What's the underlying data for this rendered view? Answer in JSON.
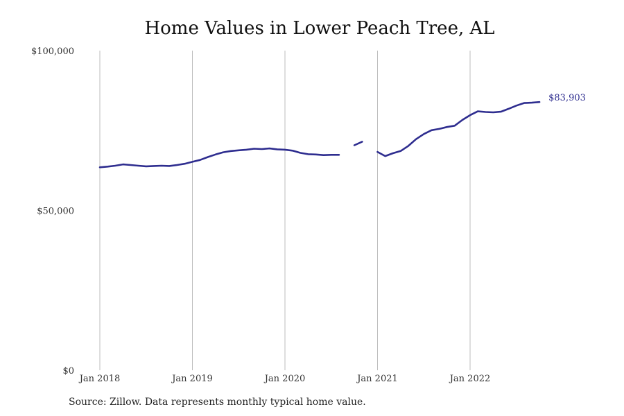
{
  "chart_data": {
    "type": "line",
    "title": "Home Values in Lower Peach Tree, AL",
    "xlabel": "",
    "ylabel": "",
    "ylim": [
      0,
      100000
    ],
    "y_ticks": [
      {
        "value": 0,
        "label": "$0"
      },
      {
        "value": 50000,
        "label": "$50,000"
      },
      {
        "value": 100000,
        "label": "$100,000"
      }
    ],
    "x_ticks": [
      {
        "value": "2018-01",
        "label": "Jan 2018"
      },
      {
        "value": "2019-01",
        "label": "Jan 2019"
      },
      {
        "value": "2020-01",
        "label": "Jan 2020"
      },
      {
        "value": "2021-01",
        "label": "Jan 2021"
      },
      {
        "value": "2022-01",
        "label": "Jan 2022"
      }
    ],
    "grid": "vertical",
    "color": "#2e2d8f",
    "end_label": "$83,903",
    "series": [
      {
        "points": [
          [
            "2018-01",
            63500
          ],
          [
            "2018-02",
            63700
          ],
          [
            "2018-03",
            64000
          ],
          [
            "2018-04",
            64400
          ],
          [
            "2018-05",
            64200
          ],
          [
            "2018-06",
            64000
          ],
          [
            "2018-07",
            63800
          ],
          [
            "2018-08",
            63900
          ],
          [
            "2018-09",
            64000
          ],
          [
            "2018-10",
            63900
          ],
          [
            "2018-11",
            64200
          ],
          [
            "2018-12",
            64600
          ],
          [
            "2019-01",
            65200
          ],
          [
            "2019-02",
            65800
          ],
          [
            "2019-03",
            66700
          ],
          [
            "2019-04",
            67500
          ],
          [
            "2019-05",
            68200
          ],
          [
            "2019-06",
            68600
          ],
          [
            "2019-07",
            68800
          ],
          [
            "2019-08",
            69000
          ],
          [
            "2019-09",
            69300
          ],
          [
            "2019-10",
            69200
          ],
          [
            "2019-11",
            69400
          ],
          [
            "2019-12",
            69100
          ],
          [
            "2020-01",
            69000
          ],
          [
            "2020-02",
            68700
          ],
          [
            "2020-03",
            68000
          ],
          [
            "2020-04",
            67600
          ],
          [
            "2020-05",
            67500
          ],
          [
            "2020-06",
            67300
          ],
          [
            "2020-07",
            67400
          ],
          [
            "2020-08",
            67400
          ],
          [
            "2020-09",
            null
          ],
          [
            "2020-10",
            70400
          ],
          [
            "2020-11",
            71500
          ],
          [
            "2020-12",
            null
          ],
          [
            "2021-01",
            68300
          ],
          [
            "2021-02",
            67000
          ],
          [
            "2021-03",
            67900
          ],
          [
            "2021-04",
            68600
          ],
          [
            "2021-05",
            70200
          ],
          [
            "2021-06",
            72300
          ],
          [
            "2021-07",
            73900
          ],
          [
            "2021-08",
            75100
          ],
          [
            "2021-09",
            75500
          ],
          [
            "2021-10",
            76100
          ],
          [
            "2021-11",
            76500
          ],
          [
            "2021-12",
            78300
          ],
          [
            "2022-01",
            79800
          ],
          [
            "2022-02",
            81000
          ],
          [
            "2022-03",
            80800
          ],
          [
            "2022-04",
            80700
          ],
          [
            "2022-05",
            80900
          ],
          [
            "2022-06",
            81800
          ],
          [
            "2022-07",
            82800
          ],
          [
            "2022-08",
            83600
          ],
          [
            "2022-09",
            83700
          ],
          [
            "2022-10",
            83903
          ]
        ]
      }
    ]
  },
  "footer": {
    "source": "Source: Zillow. Data represents monthly typical home value."
  }
}
